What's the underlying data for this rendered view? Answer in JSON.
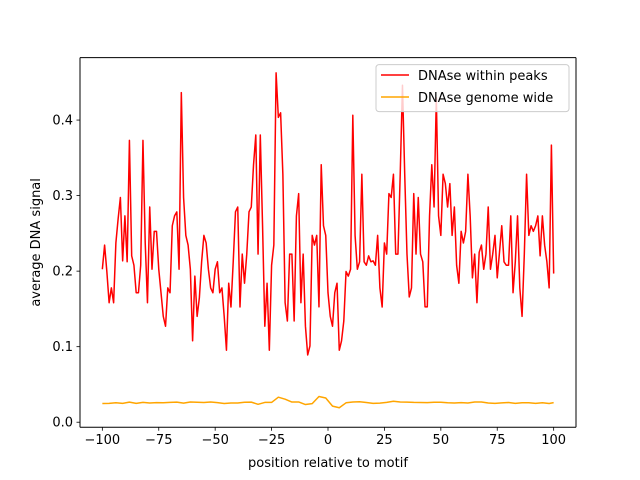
{
  "chart_data": {
    "type": "line",
    "title": "",
    "xlabel": "position relative to motif",
    "ylabel": "average DNA signal",
    "xlim": [
      -109.9,
      109.9
    ],
    "ylim": [
      -0.0066,
      0.4827
    ],
    "xticks": [
      -100,
      -75,
      -50,
      -25,
      0,
      25,
      50,
      75,
      100
    ],
    "yticks": [
      0.0,
      0.1,
      0.2,
      0.3,
      0.4
    ],
    "grid": false,
    "legend_position": "top-right",
    "series": [
      {
        "name": "DNAse within peaks",
        "color": "#ff0000",
        "points": [
          [
            -100,
            0.2025
          ],
          [
            -99,
            0.2345
          ],
          [
            -98,
            0.1995
          ],
          [
            -97,
            0.1582
          ],
          [
            -96,
            0.1778
          ],
          [
            -95,
            0.1582
          ],
          [
            -94,
            0.2373
          ],
          [
            -93,
            0.2695
          ],
          [
            -92,
            0.2975
          ],
          [
            -91,
            0.2136
          ],
          [
            -90,
            0.2731
          ],
          [
            -89,
            0.2124
          ],
          [
            -88,
            0.3731
          ],
          [
            -87,
            0.2202
          ],
          [
            -86,
            0.2078
          ],
          [
            -85,
            0.1714
          ],
          [
            -84,
            0.1714
          ],
          [
            -83,
            0.2078
          ],
          [
            -82,
            0.3731
          ],
          [
            -81,
            0.2373
          ],
          [
            -80,
            0.1582
          ],
          [
            -79,
            0.2849
          ],
          [
            -78,
            0.2025
          ],
          [
            -77,
            0.2527
          ],
          [
            -76,
            0.2527
          ],
          [
            -75,
            0.2025
          ],
          [
            -74,
            0.1714
          ],
          [
            -73,
            0.1401
          ],
          [
            -72,
            0.1271
          ],
          [
            -71,
            0.1778
          ],
          [
            -70,
            0.1714
          ],
          [
            -69,
            0.2601
          ],
          [
            -68,
            0.2731
          ],
          [
            -67,
            0.2785
          ],
          [
            -66,
            0.2025
          ],
          [
            -65,
            0.4364
          ],
          [
            -64,
            0.2975
          ],
          [
            -63,
            0.2473
          ],
          [
            -62,
            0.2345
          ],
          [
            -61,
            0.2025
          ],
          [
            -60,
            0.1078
          ],
          [
            -59,
            0.1934
          ],
          [
            -58,
            0.1401
          ],
          [
            -57,
            0.1647
          ],
          [
            -56,
            0.2124
          ],
          [
            -55,
            0.2473
          ],
          [
            -54,
            0.2373
          ],
          [
            -53,
            0.2025
          ],
          [
            -52,
            0.1778
          ],
          [
            -51,
            0.1714
          ],
          [
            -50,
            0.2025
          ],
          [
            -49,
            0.2124
          ],
          [
            -48,
            0.1714
          ],
          [
            -47,
            0.1778
          ],
          [
            -46,
            0.1401
          ],
          [
            -45,
            0.0953
          ],
          [
            -44,
            0.184
          ],
          [
            -43,
            0.1525
          ],
          [
            -42,
            0.2124
          ],
          [
            -41,
            0.2785
          ],
          [
            -40,
            0.2849
          ],
          [
            -39,
            0.1525
          ],
          [
            -38,
            0.2226
          ],
          [
            -37,
            0.184
          ],
          [
            -36,
            0.2226
          ],
          [
            -35,
            0.2785
          ],
          [
            -34,
            0.2849
          ],
          [
            -33,
            0.3408
          ],
          [
            -32,
            0.3802
          ],
          [
            -31,
            0.2226
          ],
          [
            -30,
            0.3802
          ],
          [
            -29,
            0.2602
          ],
          [
            -28,
            0.1271
          ],
          [
            -27,
            0.184
          ],
          [
            -26,
            0.0953
          ],
          [
            -25,
            0.2078
          ],
          [
            -24,
            0.2345
          ],
          [
            -23,
            0.4625
          ],
          [
            -22,
            0.4035
          ],
          [
            -21,
            0.4096
          ],
          [
            -20,
            0.3282
          ],
          [
            -19,
            0.1582
          ],
          [
            -18,
            0.134
          ],
          [
            -17,
            0.2226
          ],
          [
            -16,
            0.2226
          ],
          [
            -15,
            0.134
          ],
          [
            -14,
            0.2731
          ],
          [
            -13,
            0.3026
          ],
          [
            -12,
            0.1582
          ],
          [
            -11,
            0.2226
          ],
          [
            -10,
            0.1271
          ],
          [
            -9,
            0.089
          ],
          [
            -8,
            0.101
          ],
          [
            -7,
            0.2473
          ],
          [
            -6,
            0.2345
          ],
          [
            -5,
            0.2473
          ],
          [
            -4,
            0.1527
          ],
          [
            -3,
            0.3408
          ],
          [
            -2,
            0.2601
          ],
          [
            -1,
            0.2473
          ],
          [
            0,
            0.1714
          ],
          [
            1,
            0.1401
          ],
          [
            2,
            0.1271
          ],
          [
            3,
            0.1714
          ],
          [
            4,
            0.184
          ],
          [
            5,
            0.0953
          ],
          [
            6,
            0.1078
          ],
          [
            7,
            0.134
          ],
          [
            8,
            0.1995
          ],
          [
            9,
            0.1934
          ],
          [
            10,
            0.2025
          ],
          [
            11,
            0.4064
          ],
          [
            12,
            0.2473
          ],
          [
            13,
            0.2025
          ],
          [
            14,
            0.2124
          ],
          [
            15,
            0.3282
          ],
          [
            16,
            0.2124
          ],
          [
            17,
            0.2078
          ],
          [
            18,
            0.2202
          ],
          [
            19,
            0.2124
          ],
          [
            20,
            0.2136
          ],
          [
            21,
            0.2078
          ],
          [
            22,
            0.2473
          ],
          [
            23,
            0.1778
          ],
          [
            24,
            0.1525
          ],
          [
            25,
            0.2373
          ],
          [
            26,
            0.2226
          ],
          [
            27,
            0.3026
          ],
          [
            28,
            0.2975
          ],
          [
            29,
            0.3282
          ],
          [
            30,
            0.2226
          ],
          [
            31,
            0.2226
          ],
          [
            32,
            0.3282
          ],
          [
            33,
            0.4461
          ],
          [
            34,
            0.3282
          ],
          [
            35,
            0.2226
          ],
          [
            36,
            0.1658
          ],
          [
            37,
            0.1778
          ],
          [
            38,
            0.3026
          ],
          [
            39,
            0.2226
          ],
          [
            40,
            0.2975
          ],
          [
            41,
            0.2226
          ],
          [
            42,
            0.2124
          ],
          [
            43,
            0.1527
          ],
          [
            44,
            0.1527
          ],
          [
            45,
            0.2731
          ],
          [
            46,
            0.3408
          ],
          [
            47,
            0.2849
          ],
          [
            48,
            0.4297
          ],
          [
            49,
            0.2731
          ],
          [
            50,
            0.2473
          ],
          [
            51,
            0.3282
          ],
          [
            52,
            0.3159
          ],
          [
            53,
            0.2849
          ],
          [
            54,
            0.3159
          ],
          [
            55,
            0.2473
          ],
          [
            56,
            0.2849
          ],
          [
            57,
            0.2078
          ],
          [
            58,
            0.184
          ],
          [
            59,
            0.2527
          ],
          [
            60,
            0.2373
          ],
          [
            61,
            0.2527
          ],
          [
            62,
            0.3282
          ],
          [
            63,
            0.2731
          ],
          [
            64,
            0.1911
          ],
          [
            65,
            0.2226
          ],
          [
            66,
            0.1582
          ],
          [
            67,
            0.2249
          ],
          [
            68,
            0.2345
          ],
          [
            69,
            0.2025
          ],
          [
            70,
            0.2226
          ],
          [
            71,
            0.2849
          ],
          [
            72,
            0.2025
          ],
          [
            73,
            0.2226
          ],
          [
            74,
            0.2473
          ],
          [
            75,
            0.1911
          ],
          [
            76,
            0.2249
          ],
          [
            77,
            0.2601
          ],
          [
            78,
            0.2124
          ],
          [
            79,
            0.2078
          ],
          [
            80,
            0.2078
          ],
          [
            81,
            0.2731
          ],
          [
            82,
            0.1714
          ],
          [
            83,
            0.2124
          ],
          [
            84,
            0.2731
          ],
          [
            85,
            0.1778
          ],
          [
            86,
            0.1401
          ],
          [
            87,
            0.2226
          ],
          [
            88,
            0.3282
          ],
          [
            89,
            0.2473
          ],
          [
            90,
            0.2601
          ],
          [
            91,
            0.2527
          ],
          [
            92,
            0.2601
          ],
          [
            93,
            0.2731
          ],
          [
            94,
            0.2202
          ],
          [
            95,
            0.2731
          ],
          [
            96,
            0.2345
          ],
          [
            97,
            0.2124
          ],
          [
            98,
            0.1778
          ],
          [
            99,
            0.3669
          ],
          [
            100,
            0.1968
          ]
        ]
      },
      {
        "name": "DNAse genome wide",
        "color": "#ffa500",
        "points": [
          [
            -100,
            0.0247
          ],
          [
            -97,
            0.0249
          ],
          [
            -94,
            0.0257
          ],
          [
            -91,
            0.025
          ],
          [
            -88,
            0.0266
          ],
          [
            -85,
            0.0249
          ],
          [
            -82,
            0.0262
          ],
          [
            -79,
            0.0255
          ],
          [
            -76,
            0.0259
          ],
          [
            -73,
            0.0258
          ],
          [
            -70,
            0.0262
          ],
          [
            -67,
            0.0266
          ],
          [
            -64,
            0.0253
          ],
          [
            -61,
            0.0267
          ],
          [
            -58,
            0.0265
          ],
          [
            -55,
            0.0261
          ],
          [
            -52,
            0.0267
          ],
          [
            -49,
            0.0259
          ],
          [
            -46,
            0.0248
          ],
          [
            -43,
            0.0255
          ],
          [
            -40,
            0.0255
          ],
          [
            -37,
            0.0265
          ],
          [
            -34,
            0.0266
          ],
          [
            -31,
            0.0237
          ],
          [
            -28,
            0.0262
          ],
          [
            -25,
            0.0262
          ],
          [
            -22,
            0.0331
          ],
          [
            -19,
            0.0305
          ],
          [
            -16,
            0.0267
          ],
          [
            -13,
            0.0268
          ],
          [
            -10,
            0.0234
          ],
          [
            -7,
            0.0246
          ],
          [
            -4,
            0.0341
          ],
          [
            -1,
            0.0321
          ],
          [
            2,
            0.0213
          ],
          [
            5,
            0.0192
          ],
          [
            8,
            0.0257
          ],
          [
            11,
            0.0267
          ],
          [
            14,
            0.0271
          ],
          [
            17,
            0.0261
          ],
          [
            20,
            0.0249
          ],
          [
            23,
            0.0253
          ],
          [
            26,
            0.0263
          ],
          [
            29,
            0.0277
          ],
          [
            32,
            0.0267
          ],
          [
            35,
            0.0266
          ],
          [
            38,
            0.0262
          ],
          [
            41,
            0.0261
          ],
          [
            44,
            0.0259
          ],
          [
            47,
            0.0264
          ],
          [
            50,
            0.0265
          ],
          [
            53,
            0.0258
          ],
          [
            56,
            0.0254
          ],
          [
            59,
            0.0259
          ],
          [
            62,
            0.0255
          ],
          [
            65,
            0.0267
          ],
          [
            68,
            0.0268
          ],
          [
            71,
            0.0255
          ],
          [
            74,
            0.025
          ],
          [
            77,
            0.0256
          ],
          [
            80,
            0.0261
          ],
          [
            83,
            0.025
          ],
          [
            86,
            0.0258
          ],
          [
            89,
            0.0258
          ],
          [
            92,
            0.025
          ],
          [
            95,
            0.0257
          ],
          [
            98,
            0.0248
          ],
          [
            100,
            0.0259
          ]
        ]
      }
    ]
  }
}
